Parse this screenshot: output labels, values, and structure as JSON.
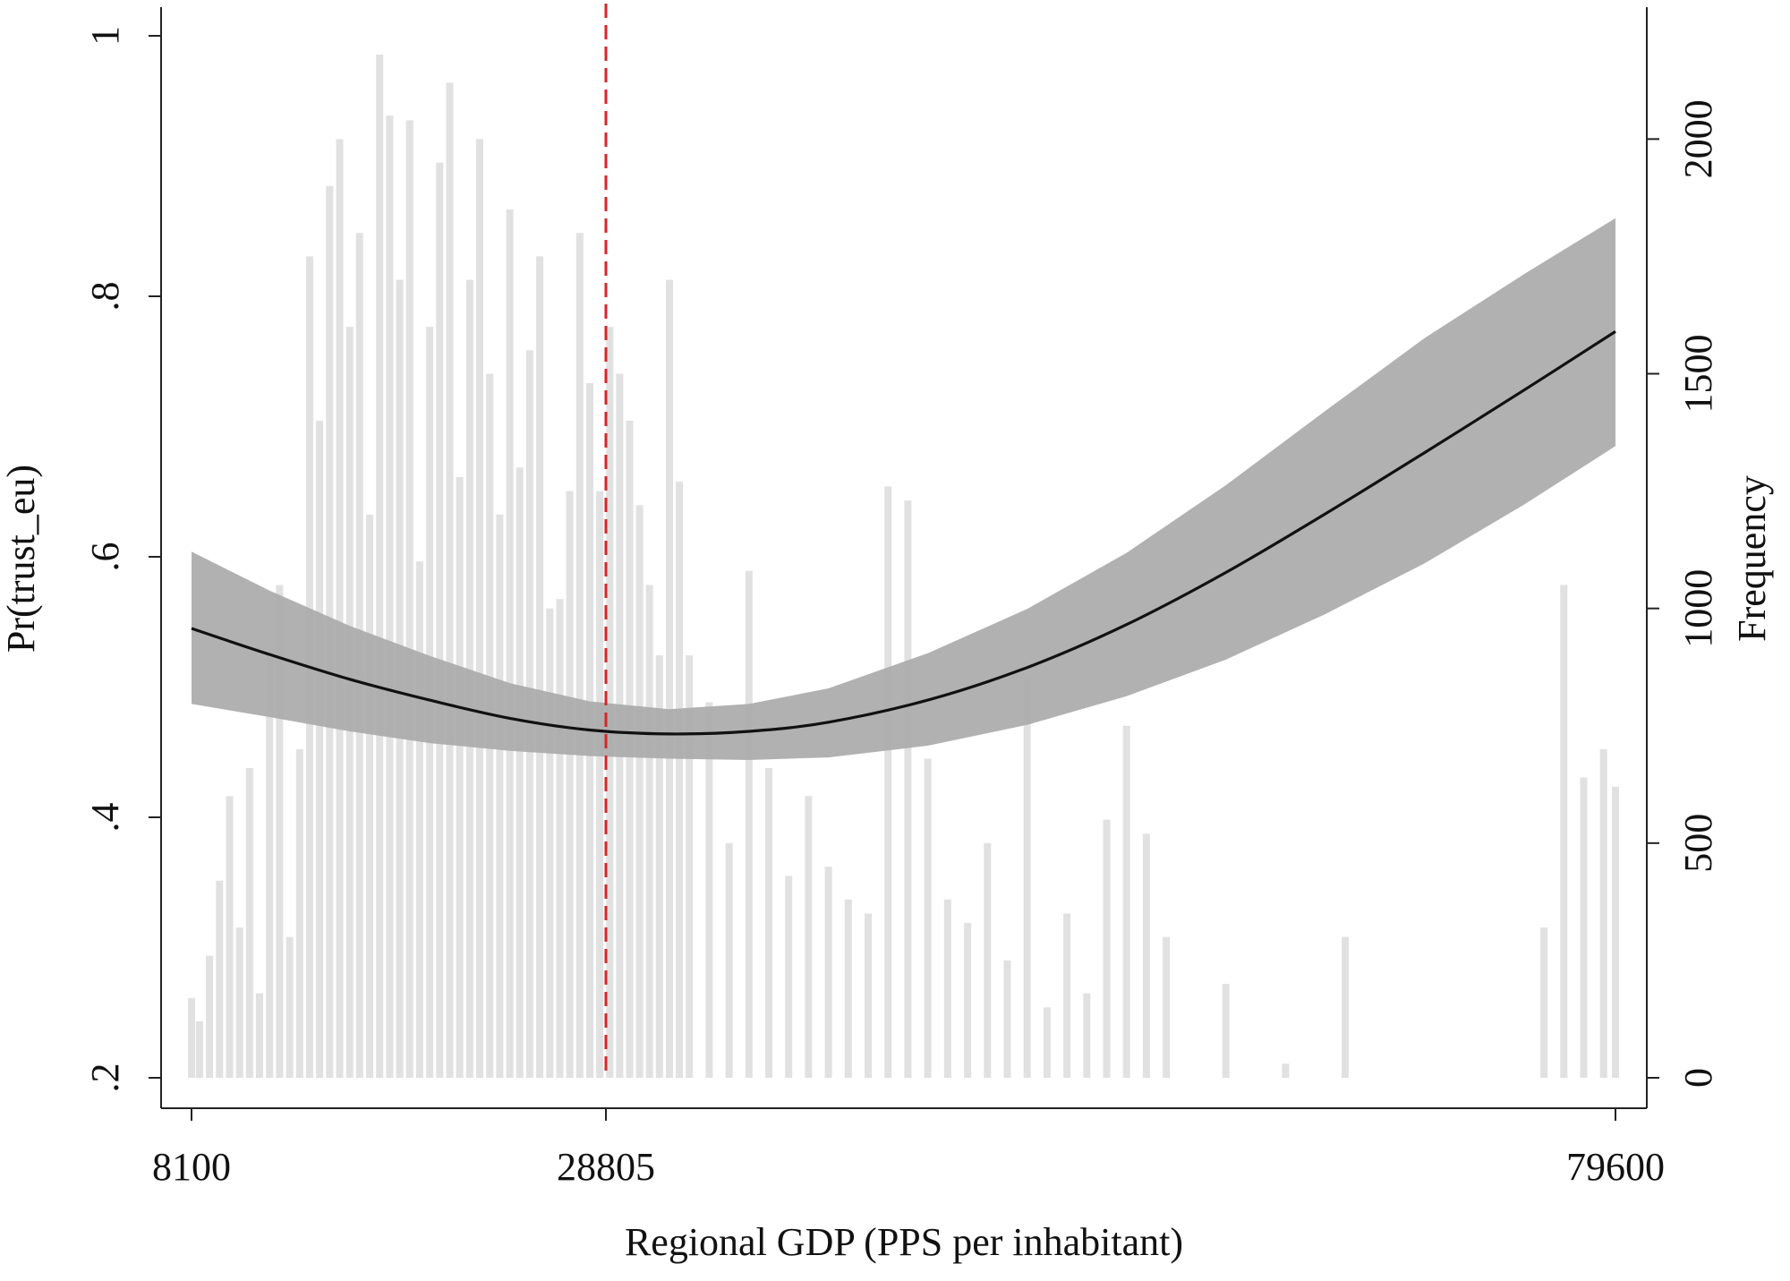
{
  "chart_data": {
    "type": "line",
    "xlabel": "Regional GDP (PPS per inhabitant)",
    "ylabel": "Pr(trust_eu)",
    "y2label": "Frequency",
    "xlim": [
      8100,
      79600
    ],
    "ylim": [
      0.2,
      1.0
    ],
    "y2lim": [
      0,
      2220
    ],
    "x_ticks": [
      {
        "value": 8100,
        "label": "8100"
      },
      {
        "value": 28805,
        "label": "28805"
      },
      {
        "value": 79600,
        "label": "79600"
      }
    ],
    "y_ticks": [
      {
        "value": 0.2,
        "label": ".2"
      },
      {
        "value": 0.4,
        "label": ".4"
      },
      {
        "value": 0.6,
        "label": ".6"
      },
      {
        "value": 0.8,
        "label": ".8"
      },
      {
        "value": 1.0,
        "label": "1"
      }
    ],
    "y2_ticks": [
      {
        "value": 0,
        "label": "0"
      },
      {
        "value": 500,
        "label": "500"
      },
      {
        "value": 1000,
        "label": "1000"
      },
      {
        "value": 1500,
        "label": "1500"
      },
      {
        "value": 2000,
        "label": "2000"
      }
    ],
    "reference_line": {
      "x": 28805,
      "color": "#d62728",
      "style": "dashed"
    },
    "prediction": {
      "color": "#111111",
      "band_color": "#aaaaaa",
      "x": [
        8100,
        12000,
        16000,
        20000,
        24000,
        28000,
        32000,
        36000,
        40000,
        45000,
        50000,
        55000,
        60000,
        65000,
        70000,
        75000,
        79600
      ],
      "y": [
        0.545,
        0.525,
        0.506,
        0.49,
        0.476,
        0.467,
        0.464,
        0.466,
        0.473,
        0.49,
        0.515,
        0.548,
        0.588,
        0.633,
        0.68,
        0.728,
        0.773
      ],
      "ci_low": [
        0.487,
        0.477,
        0.466,
        0.457,
        0.451,
        0.447,
        0.445,
        0.444,
        0.446,
        0.455,
        0.471,
        0.493,
        0.521,
        0.556,
        0.595,
        0.64,
        0.685
      ],
      "ci_high": [
        0.604,
        0.574,
        0.547,
        0.524,
        0.503,
        0.489,
        0.483,
        0.487,
        0.499,
        0.526,
        0.56,
        0.603,
        0.655,
        0.712,
        0.768,
        0.817,
        0.86
      ]
    },
    "histogram": {
      "series_name": "Frequency",
      "color": "#dcdcdc",
      "x": [
        8100,
        8500,
        9000,
        9500,
        10000,
        10500,
        11000,
        11500,
        12000,
        12500,
        13000,
        13500,
        14000,
        14500,
        15000,
        15500,
        16000,
        16500,
        17000,
        17500,
        18000,
        18500,
        19000,
        19500,
        20000,
        20500,
        21000,
        21500,
        22000,
        22500,
        23000,
        23500,
        24000,
        24500,
        25000,
        25500,
        26000,
        26500,
        27000,
        27500,
        28000,
        28500,
        29000,
        29500,
        30000,
        30500,
        31000,
        31500,
        32000,
        32500,
        33000,
        34000,
        35000,
        36000,
        37000,
        38000,
        39000,
        40000,
        41000,
        42000,
        43000,
        44000,
        45000,
        46000,
        47000,
        48000,
        49000,
        50000,
        51000,
        52000,
        53000,
        54000,
        55000,
        56000,
        57000,
        60000,
        63000,
        66000,
        76000,
        77000,
        78000,
        79000,
        79600
      ],
      "values": [
        170,
        120,
        260,
        420,
        600,
        320,
        660,
        180,
        900,
        1050,
        300,
        700,
        1750,
        1400,
        1900,
        2000,
        1600,
        1800,
        1200,
        2180,
        2050,
        1700,
        2040,
        1100,
        1600,
        1950,
        2120,
        1280,
        1700,
        2000,
        1500,
        1200,
        1850,
        1300,
        1550,
        1750,
        1000,
        1020,
        1250,
        1800,
        1480,
        1250,
        1600,
        1500,
        1400,
        1220,
        1050,
        900,
        1700,
        1270,
        900,
        800,
        500,
        1080,
        660,
        430,
        600,
        450,
        380,
        350,
        1260,
        1230,
        680,
        380,
        330,
        500,
        250,
        850,
        150,
        350,
        180,
        550,
        750,
        520,
        300,
        200,
        30,
        300,
        320,
        1050,
        640,
        700,
        620
      ]
    }
  }
}
